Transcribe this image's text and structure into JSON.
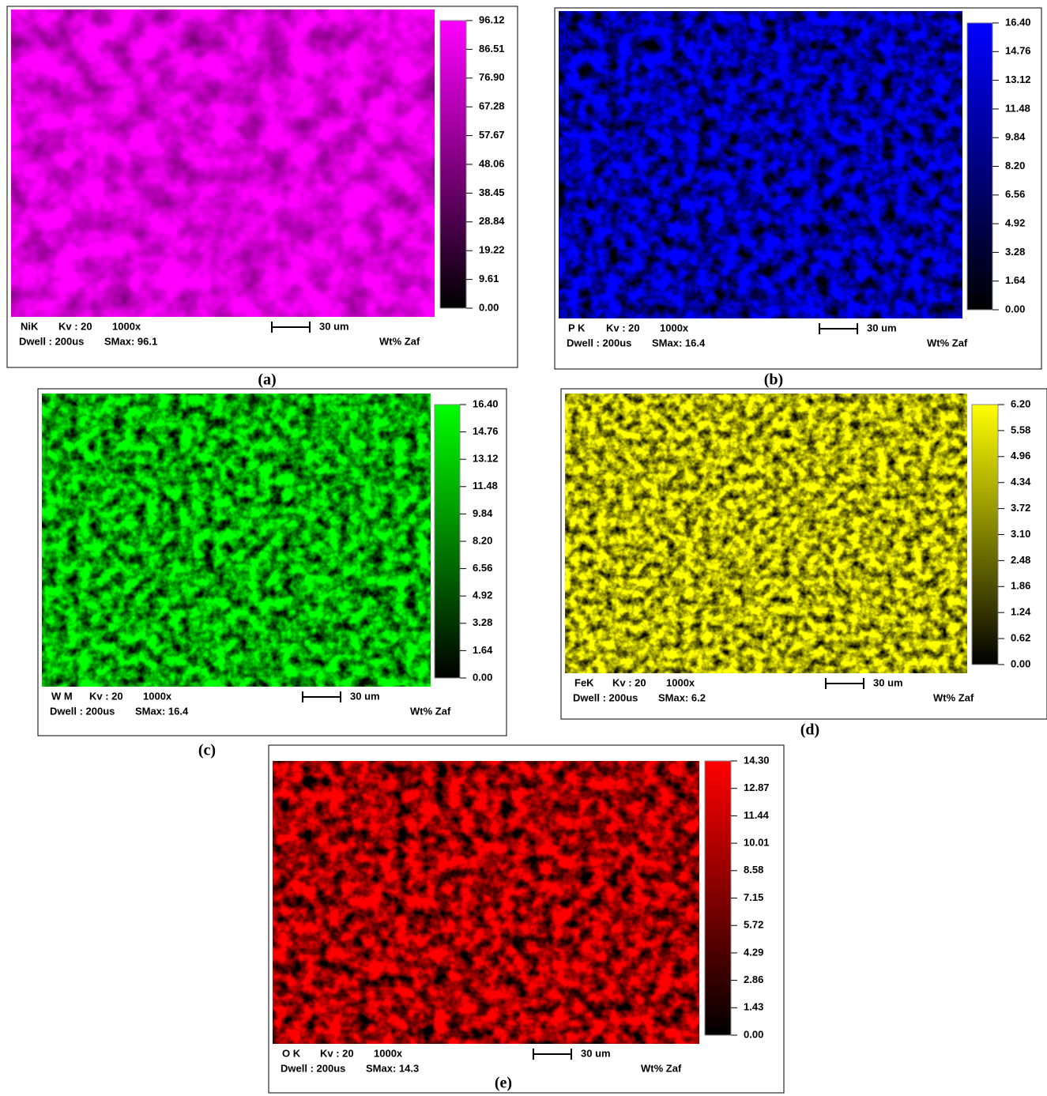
{
  "panels": [
    {
      "element": "NiK",
      "kv": "Kv : 20",
      "mag": "1000x",
      "dwell": "Dwell : 200us",
      "smax": "SMax: 96.1",
      "scale": "30 um",
      "unit": "Wt% Zaf",
      "caption": "(a)",
      "color": "#ff00ff",
      "ticks": [
        "96.12",
        "86.51",
        "76.90",
        "67.28",
        "57.67",
        "48.06",
        "38.45",
        "28.84",
        "19.22",
        "9.61",
        "0.00"
      ]
    },
    {
      "element": "P K",
      "kv": "Kv : 20",
      "mag": "1000x",
      "dwell": "Dwell : 200us",
      "smax": "SMax: 16.4",
      "scale": "30 um",
      "unit": "Wt% Zaf",
      "caption": "(b)",
      "color": "#0000ff",
      "ticks": [
        "16.40",
        "14.76",
        "13.12",
        "11.48",
        "9.84",
        "8.20",
        "6.56",
        "4.92",
        "3.28",
        "1.64",
        "0.00"
      ]
    },
    {
      "element": "W M",
      "kv": "Kv : 20",
      "mag": "1000x",
      "dwell": "Dwell : 200us",
      "smax": "SMax: 16.4",
      "scale": "30 um",
      "unit": "Wt% Zaf",
      "caption": "(c)",
      "color": "#00ff00",
      "ticks": [
        "16.40",
        "14.76",
        "13.12",
        "11.48",
        "9.84",
        "8.20",
        "6.56",
        "4.92",
        "3.28",
        "1.64",
        "0.00"
      ]
    },
    {
      "element": "FeK",
      "kv": "Kv : 20",
      "mag": "1000x",
      "dwell": "Dwell : 200us",
      "smax": "SMax: 6.2",
      "scale": "30 um",
      "unit": "Wt% Zaf",
      "caption": "(d)",
      "color": "#ffff00",
      "ticks": [
        "6.20",
        "5.58",
        "4.96",
        "4.34",
        "3.72",
        "3.10",
        "2.48",
        "1.86",
        "1.24",
        "0.62",
        "0.00"
      ]
    },
    {
      "element": "O K",
      "kv": "Kv : 20",
      "mag": "1000x",
      "dwell": "Dwell : 200us",
      "smax": "SMax: 14.3",
      "scale": "30 um",
      "unit": "Wt% Zaf",
      "caption": "(e)",
      "color": "#ff0000",
      "ticks": [
        "14.30",
        "12.87",
        "11.44",
        "10.01",
        "8.58",
        "7.15",
        "5.72",
        "4.29",
        "2.86",
        "1.43",
        "0.00"
      ]
    }
  ]
}
